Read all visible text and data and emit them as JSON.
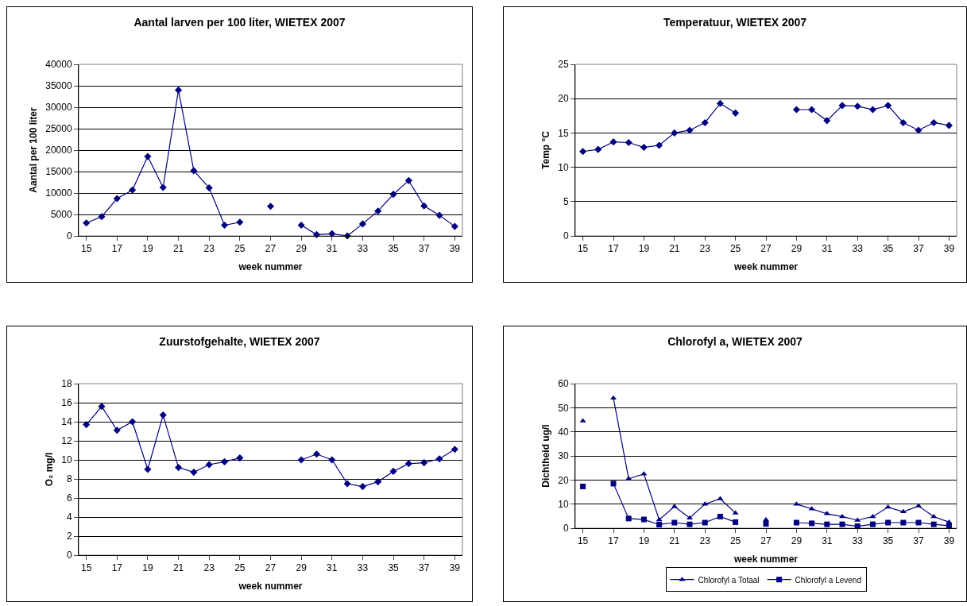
{
  "chart_data": [
    {
      "type": "line",
      "title": "Aantal larven per 100 liter, WIETEX 2007",
      "xlabel": "week nummer",
      "ylabel": "Aantal per 100 liter",
      "categories": [
        "15",
        null,
        "17",
        null,
        "19",
        null,
        "21",
        null,
        "23",
        null,
        "25",
        null,
        "27",
        null,
        "29",
        null,
        "31",
        null,
        "33",
        null,
        "35",
        null,
        "37",
        null,
        "39"
      ],
      "color": "#000080",
      "marker": "diamond",
      "grid": "y",
      "ylim": [
        0,
        40000
      ],
      "yticks": [
        0,
        5000,
        10000,
        15000,
        20000,
        25000,
        30000,
        35000,
        40000
      ],
      "values": [
        3000,
        4500,
        8700,
        10700,
        18500,
        11300,
        34000,
        15200,
        11200,
        2500,
        3200,
        null,
        6900,
        null,
        2500,
        300,
        500,
        0,
        2800,
        5800,
        9700,
        12900,
        7000,
        4800,
        2200
      ]
    },
    {
      "type": "line",
      "title": "Temperatuur, WIETEX 2007",
      "xlabel": "week nummer",
      "ylabel": "Temp °C",
      "categories": [
        "15",
        null,
        "17",
        null,
        "19",
        null,
        "21",
        null,
        "23",
        null,
        "25",
        null,
        "27",
        null,
        "29",
        null,
        "31",
        null,
        "33",
        null,
        "35",
        null,
        "37",
        null,
        "39"
      ],
      "color": "#000080",
      "marker": "diamond",
      "grid": "y",
      "ylim": [
        0,
        25
      ],
      "yticks": [
        0,
        5,
        10,
        15,
        20,
        25
      ],
      "values": [
        12.3,
        12.6,
        13.7,
        13.6,
        12.9,
        13.2,
        15.0,
        15.4,
        16.5,
        19.3,
        17.9,
        null,
        null,
        null,
        18.4,
        18.4,
        16.8,
        19.0,
        18.9,
        18.4,
        19.0,
        16.5,
        15.4,
        16.5,
        16.1
      ]
    },
    {
      "type": "line",
      "title": "Zuurstofgehalte, WIETEX 2007",
      "xlabel": "week nummer",
      "ylabel": "O₂ mg/l",
      "categories": [
        "15",
        null,
        "17",
        null,
        "19",
        null,
        "21",
        null,
        "23",
        null,
        "25",
        null,
        "27",
        null,
        "29",
        null,
        "31",
        null,
        "33",
        null,
        "35",
        null,
        "37",
        null,
        "39"
      ],
      "color": "#000080",
      "marker": "diamond",
      "grid": "y",
      "ylim": [
        0,
        18
      ],
      "yticks": [
        0,
        2,
        4,
        6,
        8,
        10,
        12,
        14,
        16,
        18
      ],
      "values": [
        13.7,
        15.6,
        13.1,
        14.0,
        9.0,
        14.7,
        9.2,
        8.7,
        9.5,
        9.8,
        10.2,
        null,
        null,
        null,
        10.0,
        10.6,
        10.0,
        7.5,
        7.2,
        7.7,
        8.8,
        9.6,
        9.7,
        10.1,
        11.1
      ]
    },
    {
      "type": "line",
      "title": "Chlorofyl a, WIETEX 2007",
      "xlabel": "week nummer",
      "ylabel": "Dichtheid ug/l",
      "categories": [
        "15",
        null,
        "17",
        null,
        "19",
        null,
        "21",
        null,
        "23",
        null,
        "25",
        null,
        "27",
        null,
        "29",
        null,
        "31",
        null,
        "33",
        null,
        "35",
        null,
        "37",
        null,
        "39"
      ],
      "grid": "y",
      "legend": "bottom",
      "ylim": [
        0,
        60
      ],
      "yticks": [
        0,
        10,
        20,
        30,
        40,
        50,
        60
      ],
      "series": [
        {
          "name": "Chlorofyl a Totaal",
          "color": "#000080",
          "marker": "triangle",
          "values": [
            44.5,
            null,
            54,
            20.5,
            22.5,
            3.5,
            9,
            4.2,
            10,
            12.2,
            6.3,
            null,
            3.5,
            null,
            10,
            8,
            6,
            4.8,
            3.3,
            4.8,
            8.7,
            6.8,
            9.2,
            4.8,
            2.5
          ]
        },
        {
          "name": "Chlorofyl a Levend",
          "color": "#000080",
          "marker": "square",
          "values": [
            17.3,
            null,
            18.5,
            4,
            3.6,
            1.5,
            2.3,
            1.6,
            2.3,
            4.8,
            2.5,
            null,
            1.8,
            null,
            2.3,
            2,
            1.6,
            1.6,
            0.8,
            1.6,
            2.3,
            2.3,
            2.3,
            1.6,
            1.0
          ]
        }
      ]
    }
  ]
}
